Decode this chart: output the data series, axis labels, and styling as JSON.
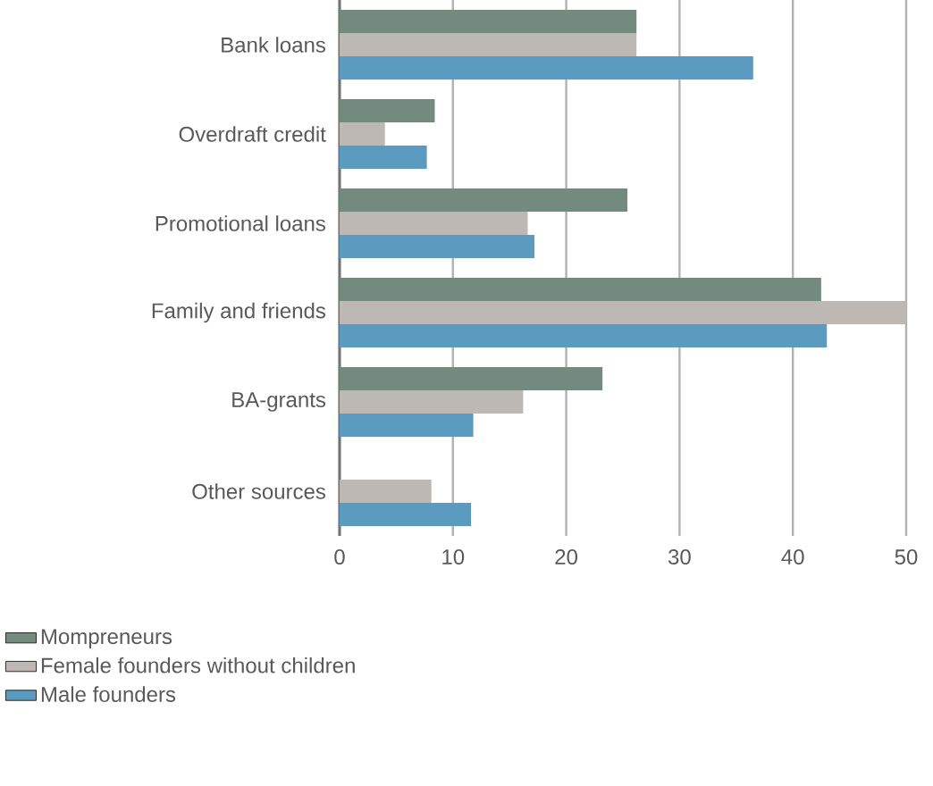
{
  "chart_data": {
    "type": "bar",
    "orientation": "horizontal",
    "categories": [
      "Bank loans",
      "Overdraft credit",
      "Promotional loans",
      "Family and friends",
      "BA-grants",
      "Other sources"
    ],
    "series": [
      {
        "name": "Mompreneurs",
        "color": "#738b7e",
        "values": [
          26.2,
          8.4,
          25.4,
          42.5,
          23.2,
          null
        ]
      },
      {
        "name": "Female founders without children",
        "color": "#bdb8b4",
        "values": [
          26.2,
          4.0,
          16.6,
          50,
          16.2,
          8.1
        ]
      },
      {
        "name": "Male founders",
        "color": "#5b9bbf",
        "values": [
          36.5,
          7.7,
          17.2,
          43.0,
          11.8,
          11.6
        ]
      }
    ],
    "xlim": [
      0,
      50
    ],
    "xticks": [
      0,
      10,
      20,
      30,
      40,
      50
    ],
    "grid": "x",
    "legend": "bottom"
  }
}
